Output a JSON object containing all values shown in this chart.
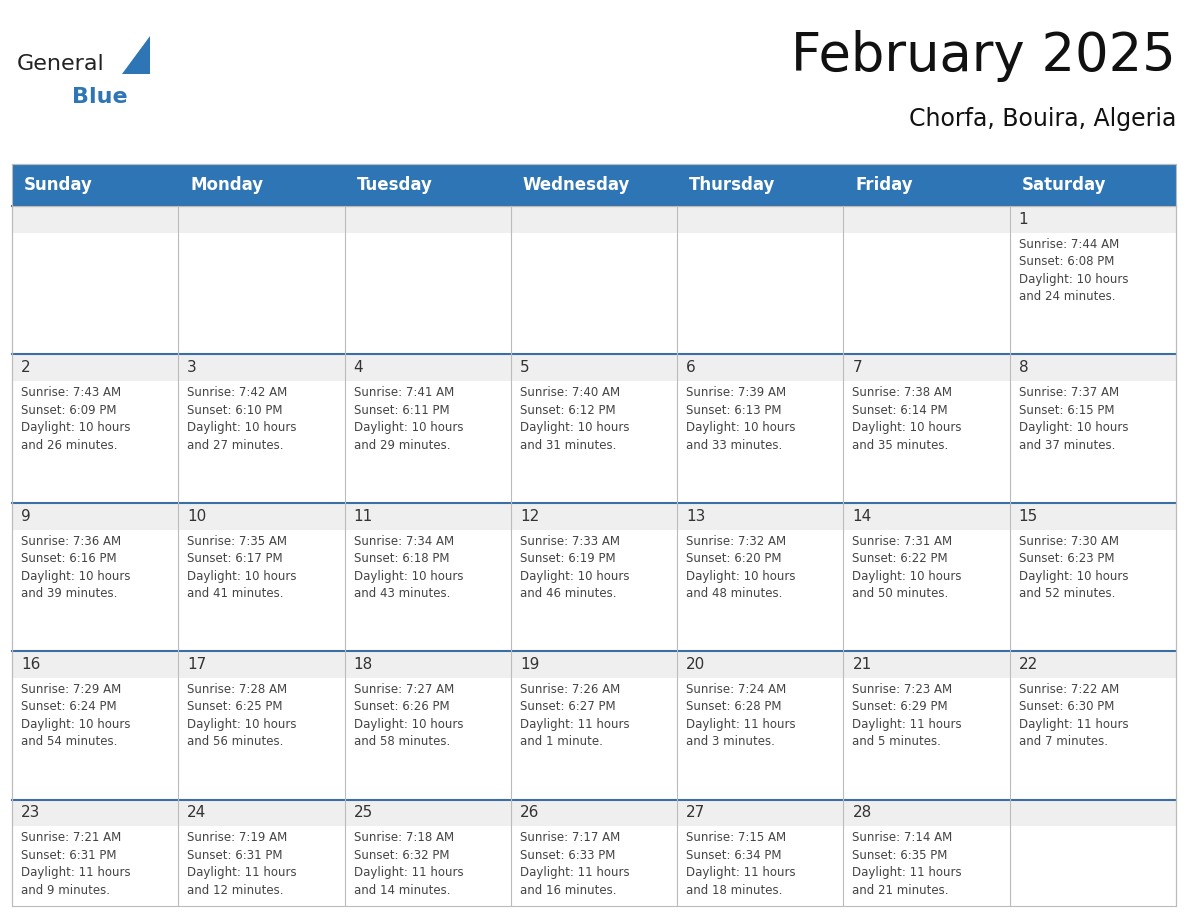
{
  "title": "February 2025",
  "subtitle": "Chorfa, Bouira, Algeria",
  "header_bg": "#2E75B6",
  "header_text_color": "#FFFFFF",
  "cell_bg_gray": "#EFEFEF",
  "cell_bg_white": "#FFFFFF",
  "day_number_color": "#333333",
  "text_color": "#444444",
  "line_color": "#3A6EA5",
  "days_of_week": [
    "Sunday",
    "Monday",
    "Tuesday",
    "Wednesday",
    "Thursday",
    "Friday",
    "Saturday"
  ],
  "weeks": [
    [
      {
        "day": 0,
        "info": ""
      },
      {
        "day": 0,
        "info": ""
      },
      {
        "day": 0,
        "info": ""
      },
      {
        "day": 0,
        "info": ""
      },
      {
        "day": 0,
        "info": ""
      },
      {
        "day": 0,
        "info": ""
      },
      {
        "day": 1,
        "info": "Sunrise: 7:44 AM\nSunset: 6:08 PM\nDaylight: 10 hours\nand 24 minutes."
      }
    ],
    [
      {
        "day": 2,
        "info": "Sunrise: 7:43 AM\nSunset: 6:09 PM\nDaylight: 10 hours\nand 26 minutes."
      },
      {
        "day": 3,
        "info": "Sunrise: 7:42 AM\nSunset: 6:10 PM\nDaylight: 10 hours\nand 27 minutes."
      },
      {
        "day": 4,
        "info": "Sunrise: 7:41 AM\nSunset: 6:11 PM\nDaylight: 10 hours\nand 29 minutes."
      },
      {
        "day": 5,
        "info": "Sunrise: 7:40 AM\nSunset: 6:12 PM\nDaylight: 10 hours\nand 31 minutes."
      },
      {
        "day": 6,
        "info": "Sunrise: 7:39 AM\nSunset: 6:13 PM\nDaylight: 10 hours\nand 33 minutes."
      },
      {
        "day": 7,
        "info": "Sunrise: 7:38 AM\nSunset: 6:14 PM\nDaylight: 10 hours\nand 35 minutes."
      },
      {
        "day": 8,
        "info": "Sunrise: 7:37 AM\nSunset: 6:15 PM\nDaylight: 10 hours\nand 37 minutes."
      }
    ],
    [
      {
        "day": 9,
        "info": "Sunrise: 7:36 AM\nSunset: 6:16 PM\nDaylight: 10 hours\nand 39 minutes."
      },
      {
        "day": 10,
        "info": "Sunrise: 7:35 AM\nSunset: 6:17 PM\nDaylight: 10 hours\nand 41 minutes."
      },
      {
        "day": 11,
        "info": "Sunrise: 7:34 AM\nSunset: 6:18 PM\nDaylight: 10 hours\nand 43 minutes."
      },
      {
        "day": 12,
        "info": "Sunrise: 7:33 AM\nSunset: 6:19 PM\nDaylight: 10 hours\nand 46 minutes."
      },
      {
        "day": 13,
        "info": "Sunrise: 7:32 AM\nSunset: 6:20 PM\nDaylight: 10 hours\nand 48 minutes."
      },
      {
        "day": 14,
        "info": "Sunrise: 7:31 AM\nSunset: 6:22 PM\nDaylight: 10 hours\nand 50 minutes."
      },
      {
        "day": 15,
        "info": "Sunrise: 7:30 AM\nSunset: 6:23 PM\nDaylight: 10 hours\nand 52 minutes."
      }
    ],
    [
      {
        "day": 16,
        "info": "Sunrise: 7:29 AM\nSunset: 6:24 PM\nDaylight: 10 hours\nand 54 minutes."
      },
      {
        "day": 17,
        "info": "Sunrise: 7:28 AM\nSunset: 6:25 PM\nDaylight: 10 hours\nand 56 minutes."
      },
      {
        "day": 18,
        "info": "Sunrise: 7:27 AM\nSunset: 6:26 PM\nDaylight: 10 hours\nand 58 minutes."
      },
      {
        "day": 19,
        "info": "Sunrise: 7:26 AM\nSunset: 6:27 PM\nDaylight: 11 hours\nand 1 minute."
      },
      {
        "day": 20,
        "info": "Sunrise: 7:24 AM\nSunset: 6:28 PM\nDaylight: 11 hours\nand 3 minutes."
      },
      {
        "day": 21,
        "info": "Sunrise: 7:23 AM\nSunset: 6:29 PM\nDaylight: 11 hours\nand 5 minutes."
      },
      {
        "day": 22,
        "info": "Sunrise: 7:22 AM\nSunset: 6:30 PM\nDaylight: 11 hours\nand 7 minutes."
      }
    ],
    [
      {
        "day": 23,
        "info": "Sunrise: 7:21 AM\nSunset: 6:31 PM\nDaylight: 11 hours\nand 9 minutes."
      },
      {
        "day": 24,
        "info": "Sunrise: 7:19 AM\nSunset: 6:31 PM\nDaylight: 11 hours\nand 12 minutes."
      },
      {
        "day": 25,
        "info": "Sunrise: 7:18 AM\nSunset: 6:32 PM\nDaylight: 11 hours\nand 14 minutes."
      },
      {
        "day": 26,
        "info": "Sunrise: 7:17 AM\nSunset: 6:33 PM\nDaylight: 11 hours\nand 16 minutes."
      },
      {
        "day": 27,
        "info": "Sunrise: 7:15 AM\nSunset: 6:34 PM\nDaylight: 11 hours\nand 18 minutes."
      },
      {
        "day": 28,
        "info": "Sunrise: 7:14 AM\nSunset: 6:35 PM\nDaylight: 11 hours\nand 21 minutes."
      },
      {
        "day": 0,
        "info": ""
      }
    ]
  ],
  "logo_text_general": "General",
  "logo_text_blue": "Blue",
  "logo_color_general": "#222222",
  "logo_color_blue": "#2E75B6",
  "logo_triangle_color": "#2E75B6",
  "title_fontsize": 38,
  "subtitle_fontsize": 17,
  "header_fontsize": 12,
  "day_num_fontsize": 11,
  "cell_text_fontsize": 8.5
}
